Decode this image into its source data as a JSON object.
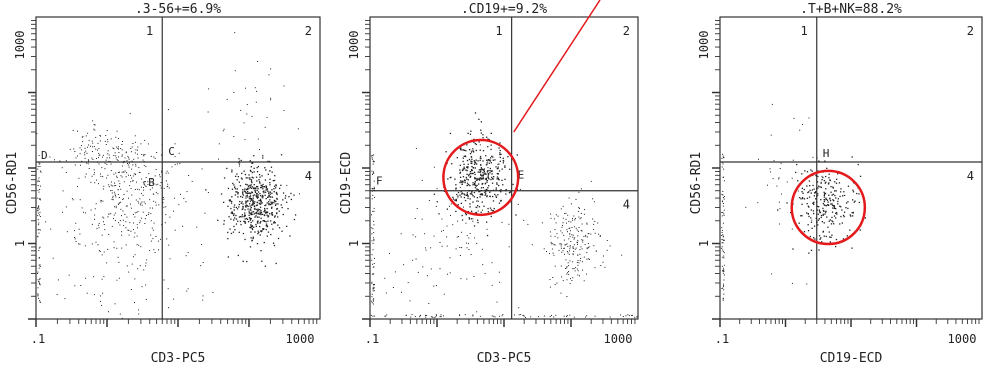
{
  "chart_data": [
    {
      "type": "scatter",
      "title": ".3-56+=6.9%",
      "xlabel": "CD3-PC5",
      "ylabel": "CD56-RD1",
      "scale": "log",
      "xlim": [
        0.1,
        1000
      ],
      "ylim": [
        0.1,
        1000
      ],
      "x_tick_labels": [
        ".1",
        "1000"
      ],
      "y_tick_labels": [
        "1",
        "1000"
      ],
      "quadrant_gate": {
        "x": 6,
        "y": 12
      },
      "quadrant_labels": [
        "1",
        "2",
        "4"
      ],
      "gate_labels": [
        "D",
        "C",
        "B"
      ],
      "clusters": [
        {
          "cx": 120,
          "cy": 3.5,
          "spread_x": 0.2,
          "spread_y": 0.25,
          "count": 520,
          "density": "high"
        },
        {
          "cx": 2.0,
          "cy": 5.0,
          "spread_x": 0.35,
          "spread_y": 0.35,
          "count": 260,
          "density": "medium"
        },
        {
          "cx": 1.0,
          "cy": 15,
          "spread_x": 0.35,
          "spread_y": 0.2,
          "count": 140,
          "density": "low"
        },
        {
          "cx": 2.0,
          "cy": 0.8,
          "spread_x": 0.6,
          "spread_y": 0.6,
          "count": 160,
          "density": "low"
        },
        {
          "cx": 120,
          "cy": 40,
          "spread_x": 0.3,
          "spread_y": 0.5,
          "count": 40,
          "density": "low"
        }
      ],
      "axis_edge_events": "left"
    },
    {
      "type": "scatter",
      "title": ".CD19+=9.2%",
      "xlabel": "CD3-PC5",
      "ylabel": "CD19-ECD",
      "scale": "log",
      "xlim": [
        0.1,
        1000
      ],
      "ylim": [
        0.1,
        1000
      ],
      "x_tick_labels": [
        ".1",
        "1000"
      ],
      "y_tick_labels": [
        "1",
        "1000"
      ],
      "quadrant_gate": {
        "x": 13,
        "y": 5
      },
      "quadrant_labels": [
        "1",
        "2",
        "4"
      ],
      "gate_labels": [
        "F",
        "E"
      ],
      "clusters": [
        {
          "cx": 4.0,
          "cy": 8.0,
          "spread_x": 0.22,
          "spread_y": 0.25,
          "count": 420,
          "density": "high"
        },
        {
          "cx": 110,
          "cy": 1.0,
          "spread_x": 0.2,
          "spread_y": 0.25,
          "count": 220,
          "density": "medium"
        },
        {
          "cx": 1.5,
          "cy": 1.0,
          "spread_x": 0.6,
          "spread_y": 0.5,
          "count": 120,
          "density": "low"
        }
      ],
      "axis_edge_events": "left-bottom",
      "highlight_circle": {
        "cx": 4.5,
        "cy": 7.5,
        "r_decades": 0.9,
        "color": "#e41a1c"
      },
      "pointer_line": {
        "from": [
          14,
          30
        ],
        "to": [
          3000000,
          10000000000
        ],
        "color": "#e41a1c"
      }
    },
    {
      "type": "scatter",
      "title": ".T+B+NK=88.2%",
      "xlabel": "CD19-ECD",
      "ylabel": "CD56-RD1",
      "scale": "log",
      "xlim": [
        0.1,
        1000
      ],
      "ylim": [
        0.1,
        1000
      ],
      "x_tick_labels": [
        ".1",
        "1000"
      ],
      "y_tick_labels": [
        "1",
        "1000"
      ],
      "quadrant_gate": {
        "x": 3,
        "y": 12
      },
      "quadrant_labels": [
        "1",
        "2",
        "4"
      ],
      "gate_labels": [
        "H"
      ],
      "clusters": [
        {
          "cx": 4.0,
          "cy": 3.5,
          "spread_x": 0.25,
          "spread_y": 0.25,
          "count": 260,
          "density": "high"
        },
        {
          "cx": 1.0,
          "cy": 5.0,
          "spread_x": 0.4,
          "spread_y": 0.5,
          "count": 40,
          "density": "low"
        }
      ],
      "axis_edge_events": "left",
      "highlight_circle": {
        "cx": 4.5,
        "cy": 3.0,
        "r_decades": 0.9,
        "color": "#e41a1c"
      }
    }
  ],
  "colors": {
    "dots": "#222222",
    "axes": "#333333",
    "highlight": "#e41a1c"
  }
}
